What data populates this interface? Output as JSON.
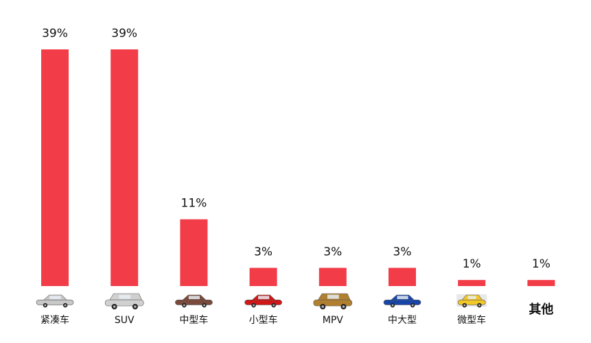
{
  "chart_data": {
    "type": "bar",
    "categories": [
      "紧凑车",
      "SUV",
      "中型车",
      "小型车",
      "MPV",
      "中大型",
      "微型车",
      "其他"
    ],
    "values": [
      39,
      39,
      11,
      3,
      3,
      3,
      1,
      1
    ],
    "labels": [
      "39%",
      "39%",
      "11%",
      "3%",
      "3%",
      "3%",
      "1%",
      "1%"
    ],
    "title": "",
    "xlabel": "",
    "ylabel": "",
    "ylim": [
      0,
      39
    ],
    "grid": false,
    "bar_color": "#f23c48",
    "category_icons": [
      "compact-car-icon",
      "suv-icon",
      "midsize-car-icon",
      "small-car-icon",
      "mpv-icon",
      "large-car-icon",
      "mini-car-icon",
      ""
    ],
    "icon_colors": [
      "#c8c8c8",
      "#d0d0d0",
      "#7a4a3a",
      "#d01818",
      "#b08030",
      "#1846a8",
      "#f2c828",
      ""
    ]
  }
}
